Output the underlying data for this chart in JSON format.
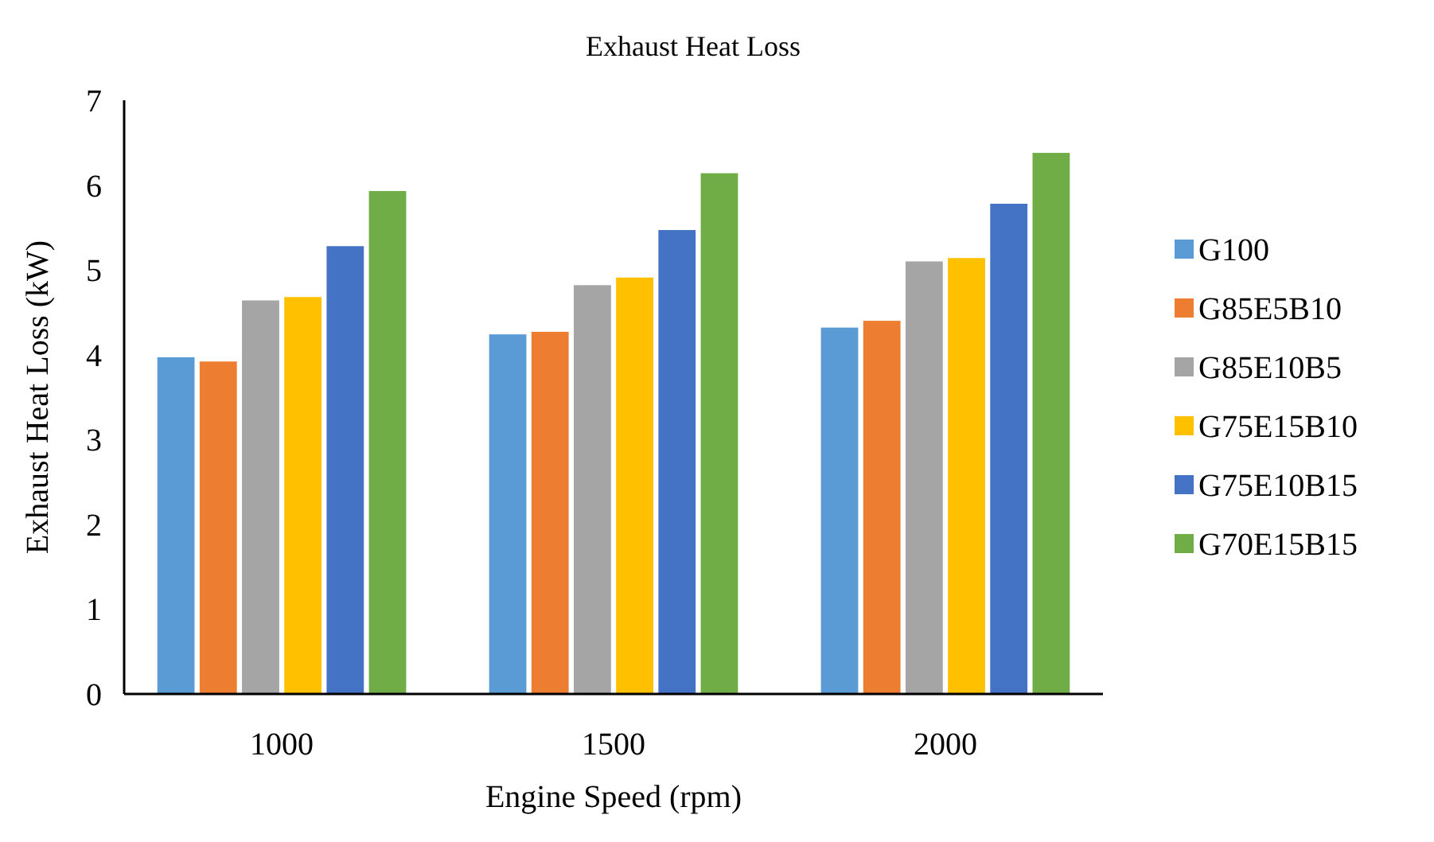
{
  "chart_data": {
    "type": "bar",
    "title": "Exhaust Heat Loss",
    "xlabel": "Engine Speed (rpm)",
    "ylabel": "Exhaust Heat Loss (kW)",
    "categories": [
      "1000",
      "1500",
      "2000"
    ],
    "series": [
      {
        "name": "G100",
        "color": "#5b9bd5",
        "values": [
          3.97,
          4.24,
          4.32
        ]
      },
      {
        "name": "G85E5B10",
        "color": "#ed7d31",
        "values": [
          3.92,
          4.27,
          4.4
        ]
      },
      {
        "name": "G85E10B5",
        "color": "#a5a5a5",
        "values": [
          4.64,
          4.82,
          5.1
        ]
      },
      {
        "name": "G75E15B10",
        "color": "#ffc000",
        "values": [
          4.68,
          4.91,
          5.14
        ]
      },
      {
        "name": "G75E10B15",
        "color": "#4472c4",
        "values": [
          5.28,
          5.47,
          5.78
        ]
      },
      {
        "name": "G70E15B15",
        "color": "#70ad47",
        "values": [
          5.93,
          6.14,
          6.38
        ]
      }
    ],
    "ylim": [
      0,
      7
    ],
    "yticks": [
      0,
      1,
      2,
      3,
      4,
      5,
      6,
      7
    ],
    "grid": false,
    "legend": "right"
  }
}
